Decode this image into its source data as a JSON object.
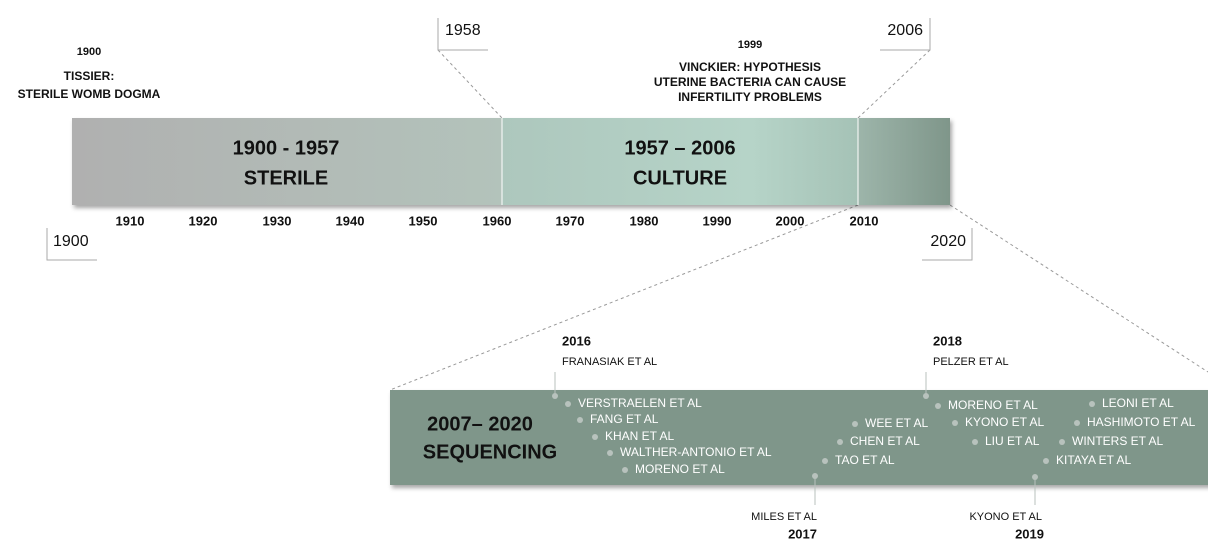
{
  "callouts": [
    "1958",
    "2006",
    "1900",
    "2020"
  ],
  "annotations": [
    {
      "year": "1900",
      "lines": [
        "TISSIER:",
        "STERILE WOMB DOGMA"
      ]
    },
    {
      "year": "1999",
      "lines": [
        "VINCKIER: HYPOTHESIS",
        "UTERINE BACTERIA CAN CAUSE",
        "INFERTILITY PROBLEMS"
      ]
    }
  ],
  "eras": [
    {
      "range": "1900 - 1957",
      "name": "STERILE"
    },
    {
      "range": "1957 – 2006",
      "name": "CULTURE"
    }
  ],
  "decades": [
    "1910",
    "1920",
    "1930",
    "1940",
    "1950",
    "1960",
    "1970",
    "1980",
    "1990",
    "2000",
    "2010"
  ],
  "sequencing": {
    "range": "2007– 2020",
    "name": "SEQUENCING",
    "milestones": [
      {
        "year": "2016",
        "name": "FRANASIAK ET AL"
      },
      {
        "year": "2017",
        "name": "MILES ET AL"
      },
      {
        "year": "2018",
        "name": "PELZER ET AL"
      },
      {
        "year": "2019",
        "name": "KYONO ET AL"
      }
    ],
    "studies": [
      "VERSTRAELEN ET AL",
      "FANG ET AL",
      "KHAN ET AL",
      "WALTHER-ANTONIO ET AL",
      "MORENO ET AL",
      "WEE ET AL",
      "CHEN ET AL",
      "TAO ET AL",
      "MORENO ET AL",
      "KYONO ET AL",
      "LIU ET AL",
      "KITAYA ET AL",
      "LEONI ET AL",
      "HASHIMOTO ET AL",
      "WINTERS ET AL"
    ]
  }
}
